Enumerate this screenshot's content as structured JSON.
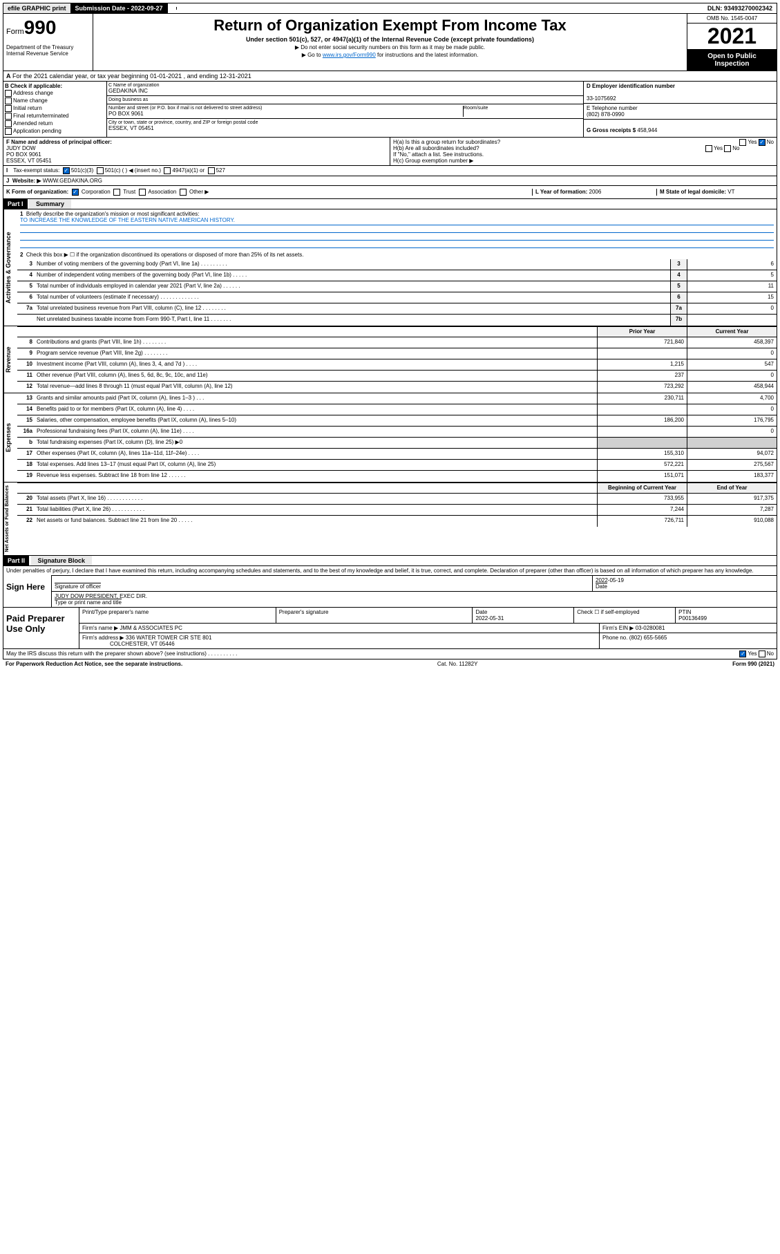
{
  "top": {
    "efile": "efile GRAPHIC print",
    "sub_date_label": "Submission Date - 2022-09-27",
    "dln": "DLN: 93493270002342"
  },
  "header": {
    "form_prefix": "Form",
    "form_num": "990",
    "title": "Return of Organization Exempt From Income Tax",
    "subtitle": "Under section 501(c), 527, or 4947(a)(1) of the Internal Revenue Code (except private foundations)",
    "note1": "▶ Do not enter social security numbers on this form as it may be made public.",
    "note2_pre": "▶ Go to ",
    "note2_link": "www.irs.gov/Form990",
    "note2_post": " for instructions and the latest information.",
    "dept": "Department of the Treasury Internal Revenue Service",
    "omb": "OMB No. 1545-0047",
    "year": "2021",
    "open": "Open to Public Inspection"
  },
  "a": {
    "text": "For the 2021 calendar year, or tax year beginning 01-01-2021   , and ending 12-31-2021"
  },
  "b": {
    "label": "B Check if applicable:",
    "opts": [
      "Address change",
      "Name change",
      "Initial return",
      "Final return/terminated",
      "Amended return",
      "Application pending"
    ]
  },
  "c": {
    "name_lbl": "C Name of organization",
    "name": "GEDAKINA INC",
    "dba_lbl": "Doing business as",
    "dba": "",
    "street_lbl": "Number and street (or P.O. box if mail is not delivered to street address)",
    "room_lbl": "Room/suite",
    "street": "PO BOX 9061",
    "city_lbl": "City or town, state or province, country, and ZIP or foreign postal code",
    "city": "ESSEX, VT  05451"
  },
  "d": {
    "lbl": "D Employer identification number",
    "val": "33-1075692"
  },
  "e": {
    "lbl": "E Telephone number",
    "val": "(802) 878-0990"
  },
  "g": {
    "lbl": "G Gross receipts $",
    "val": "458,944"
  },
  "f": {
    "lbl": "F Name and address of principal officer:",
    "name": "JUDY DOW",
    "addr1": "PO BOX 9061",
    "addr2": "ESSEX, VT  05451"
  },
  "h": {
    "a_lbl": "H(a)  Is this a group return for subordinates?",
    "b_lbl": "H(b)  Are all subordinates included?",
    "note": "If \"No,\" attach a list. See instructions.",
    "c_lbl": "H(c)  Group exemption number ▶"
  },
  "i": {
    "lbl": "Tax-exempt status:",
    "opts": [
      "501(c)(3)",
      "501(c) (  ) ◀ (insert no.)",
      "4947(a)(1) or",
      "527"
    ]
  },
  "j": {
    "lbl": "Website: ▶",
    "val": "WWW.GEDAKINA.ORG"
  },
  "k": {
    "lbl": "K Form of organization:",
    "opts": [
      "Corporation",
      "Trust",
      "Association",
      "Other ▶"
    ],
    "l_lbl": "L Year of formation:",
    "l_val": "2006",
    "m_lbl": "M State of legal domicile:",
    "m_val": "VT"
  },
  "part1": {
    "hdr": "Part I",
    "title": "Summary",
    "line1_lbl": "Briefly describe the organization's mission or most significant activities:",
    "line1_val": "TO INCREASE THE KNOWLEDGE OF THE EASTERN NATIVE AMERICAN HISTORY.",
    "line2": "Check this box ▶ ☐  if the organization discontinued its operations or disposed of more than 25% of its net assets.",
    "lines": [
      {
        "n": "3",
        "t": "Number of voting members of the governing body (Part VI, line 1a)  .   .   .   .   .   .   .   .   .",
        "box": "3",
        "v": "6"
      },
      {
        "n": "4",
        "t": "Number of independent voting members of the governing body (Part VI, line 1b)   .   .   .   .   .",
        "box": "4",
        "v": "5"
      },
      {
        "n": "5",
        "t": "Total number of individuals employed in calendar year 2021 (Part V, line 2a)   .   .   .   .   .   .",
        "box": "5",
        "v": "11"
      },
      {
        "n": "6",
        "t": "Total number of volunteers (estimate if necessary)   .   .   .   .   .   .   .   .   .   .   .   .   .",
        "box": "6",
        "v": "15"
      },
      {
        "n": "7a",
        "t": "Total unrelated business revenue from Part VIII, column (C), line 12   .   .   .   .   .   .   .   .",
        "box": "7a",
        "v": "0"
      },
      {
        "n": "",
        "t": "Net unrelated business taxable income from Form 990-T, Part I, line 11   .   .   .   .   .   .   .",
        "box": "7b",
        "v": ""
      }
    ],
    "col_prior": "Prior Year",
    "col_curr": "Current Year",
    "rev_lines": [
      {
        "n": "8",
        "t": "Contributions and grants (Part VIII, line 1h)   .   .   .   .   .   .   .   .",
        "p": "721,840",
        "c": "458,397"
      },
      {
        "n": "9",
        "t": "Program service revenue (Part VIII, line 2g)   .   .   .   .   .   .   .   .",
        "p": "",
        "c": "0"
      },
      {
        "n": "10",
        "t": "Investment income (Part VIII, column (A), lines 3, 4, and 7d )   .   .   .   .",
        "p": "1,215",
        "c": "547"
      },
      {
        "n": "11",
        "t": "Other revenue (Part VIII, column (A), lines 5, 6d, 8c, 9c, 10c, and 11e)",
        "p": "237",
        "c": "0"
      },
      {
        "n": "12",
        "t": "Total revenue—add lines 8 through 11 (must equal Part VIII, column (A), line 12)",
        "p": "723,292",
        "c": "458,944"
      }
    ],
    "exp_lines": [
      {
        "n": "13",
        "t": "Grants and similar amounts paid (Part IX, column (A), lines 1–3 )   .   .   .",
        "p": "230,711",
        "c": "4,700"
      },
      {
        "n": "14",
        "t": "Benefits paid to or for members (Part IX, column (A), line 4)   .   .   .   .",
        "p": "",
        "c": "0"
      },
      {
        "n": "15",
        "t": "Salaries, other compensation, employee benefits (Part IX, column (A), lines 5–10)",
        "p": "186,200",
        "c": "176,795"
      },
      {
        "n": "16a",
        "t": "Professional fundraising fees (Part IX, column (A), line 11e)   .   .   .   .",
        "p": "",
        "c": "0"
      },
      {
        "n": "b",
        "t": "Total fundraising expenses (Part IX, column (D), line 25) ▶0",
        "p": "",
        "c": "",
        "gray": true
      },
      {
        "n": "17",
        "t": "Other expenses (Part IX, column (A), lines 11a–11d, 11f–24e)   .   .   .   .",
        "p": "155,310",
        "c": "94,072"
      },
      {
        "n": "18",
        "t": "Total expenses. Add lines 13–17 (must equal Part IX, column (A), line 25)",
        "p": "572,221",
        "c": "275,567"
      },
      {
        "n": "19",
        "t": "Revenue less expenses. Subtract line 18 from line 12   .   .   .   .   .   .",
        "p": "151,071",
        "c": "183,377"
      }
    ],
    "col_begin": "Beginning of Current Year",
    "col_end": "End of Year",
    "net_lines": [
      {
        "n": "20",
        "t": "Total assets (Part X, line 16)   .   .   .   .   .   .   .   .   .   .   .   .",
        "p": "733,955",
        "c": "917,375"
      },
      {
        "n": "21",
        "t": "Total liabilities (Part X, line 26)   .   .   .   .   .   .   .   .   .   .   .",
        "p": "7,244",
        "c": "7,287"
      },
      {
        "n": "22",
        "t": "Net assets or fund balances. Subtract line 21 from line 20   .   .   .   .   .",
        "p": "726,711",
        "c": "910,088"
      }
    ],
    "side_gov": "Activities & Governance",
    "side_rev": "Revenue",
    "side_exp": "Expenses",
    "side_net": "Net Assets or Fund Balances"
  },
  "part2": {
    "hdr": "Part II",
    "title": "Signature Block",
    "intro": "Under penalties of perjury, I declare that I have examined this return, including accompanying schedules and statements, and to the best of my knowledge and belief, it is true, correct, and complete. Declaration of preparer (other than officer) is based on all information of which preparer has any knowledge.",
    "sign_here": "Sign Here",
    "sig_officer_lbl": "Signature of officer",
    "sig_date_lbl": "Date",
    "sig_date": "2022-05-19",
    "sig_name": "JUDY DOW  PRESIDENT, EXEC DIR.",
    "sig_name_lbl": "Type or print name and title",
    "paid": "Paid Preparer Use Only",
    "prep_name_lbl": "Print/Type preparer's name",
    "prep_sig_lbl": "Preparer's signature",
    "prep_date_lbl": "Date",
    "prep_date": "2022-05-31",
    "prep_check_lbl": "Check ☐ if self-employed",
    "ptin_lbl": "PTIN",
    "ptin": "P00136499",
    "firm_name_lbl": "Firm's name   ▶",
    "firm_name": "JMM & ASSOCIATES PC",
    "firm_ein_lbl": "Firm's EIN ▶",
    "firm_ein": "03-0280081",
    "firm_addr_lbl": "Firm's address ▶",
    "firm_addr1": "336 WATER TOWER CIR STE 801",
    "firm_addr2": "COLCHESTER, VT  05446",
    "phone_lbl": "Phone no.",
    "phone": "(802) 655-5665",
    "discuss": "May the IRS discuss this return with the preparer shown above? (see instructions)   .   .   .   .   .   .   .   .   .   .",
    "paperwork": "For Paperwork Reduction Act Notice, see the separate instructions.",
    "cat": "Cat. No. 11282Y",
    "form_foot": "Form 990 (2021)"
  }
}
